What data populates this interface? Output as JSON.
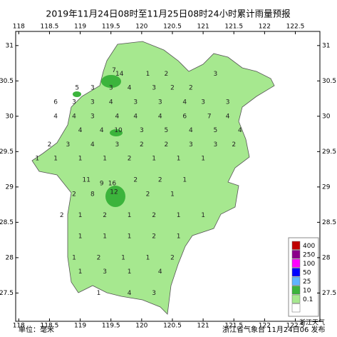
{
  "chart_data": {
    "type": "map",
    "title": "2019年11月24日08时至11月25日08时24小时累计雨量预报",
    "unit_label": "单位：毫米",
    "issuer_label": "浙江省气象台 11月24日06 发布",
    "watermark": "浙江天气",
    "xlim": [
      117.95,
      122.9
    ],
    "ylim": [
      27.1,
      31.2
    ],
    "xticks": [
      118,
      118.5,
      119,
      119.5,
      120,
      120.5,
      121,
      121.5,
      122,
      122.5
    ],
    "yticks": [
      27.5,
      28,
      28.5,
      29,
      29.5,
      30,
      30.5,
      31
    ],
    "legend": {
      "levels": [
        400,
        250,
        100,
        50,
        25,
        10,
        0.1
      ],
      "colors": [
        "#c00000",
        "#8b008b",
        "#ff00ff",
        "#0000ff",
        "#5fb4ff",
        "#3cb43c",
        "#a6e88f"
      ]
    },
    "stations": [
      {
        "lon": 119.55,
        "lat": 30.65,
        "value": 7
      },
      {
        "lon": 119.64,
        "lat": 30.6,
        "value": 14
      },
      {
        "lon": 120.1,
        "lat": 30.6,
        "value": 1
      },
      {
        "lon": 120.4,
        "lat": 30.6,
        "value": 2
      },
      {
        "lon": 121.2,
        "lat": 30.6,
        "value": 3
      },
      {
        "lon": 118.95,
        "lat": 30.4,
        "value": 5
      },
      {
        "lon": 119.2,
        "lat": 30.4,
        "value": 3
      },
      {
        "lon": 119.5,
        "lat": 30.4,
        "value": 3
      },
      {
        "lon": 119.8,
        "lat": 30.4,
        "value": 4
      },
      {
        "lon": 120.2,
        "lat": 30.4,
        "value": 3
      },
      {
        "lon": 120.5,
        "lat": 30.4,
        "value": 2
      },
      {
        "lon": 120.8,
        "lat": 30.4,
        "value": 2
      },
      {
        "lon": 118.6,
        "lat": 30.2,
        "value": 6
      },
      {
        "lon": 118.9,
        "lat": 30.2,
        "value": 3
      },
      {
        "lon": 119.2,
        "lat": 30.2,
        "value": 3
      },
      {
        "lon": 119.5,
        "lat": 30.2,
        "value": 4
      },
      {
        "lon": 119.9,
        "lat": 30.2,
        "value": 3
      },
      {
        "lon": 120.3,
        "lat": 30.2,
        "value": 3
      },
      {
        "lon": 120.7,
        "lat": 30.2,
        "value": 4
      },
      {
        "lon": 121.0,
        "lat": 30.2,
        "value": 3
      },
      {
        "lon": 121.4,
        "lat": 30.2,
        "value": 3
      },
      {
        "lon": 118.6,
        "lat": 30.0,
        "value": 4
      },
      {
        "lon": 118.9,
        "lat": 30.0,
        "value": 4
      },
      {
        "lon": 119.2,
        "lat": 30.0,
        "value": 3
      },
      {
        "lon": 119.6,
        "lat": 30.0,
        "value": 4
      },
      {
        "lon": 119.9,
        "lat": 30.0,
        "value": 4
      },
      {
        "lon": 120.3,
        "lat": 30.0,
        "value": 4
      },
      {
        "lon": 120.7,
        "lat": 30.0,
        "value": 6
      },
      {
        "lon": 121.1,
        "lat": 30.0,
        "value": 7
      },
      {
        "lon": 121.4,
        "lat": 30.0,
        "value": 4
      },
      {
        "lon": 119.0,
        "lat": 29.8,
        "value": 4
      },
      {
        "lon": 119.35,
        "lat": 29.8,
        "value": 4
      },
      {
        "lon": 119.62,
        "lat": 29.8,
        "value": 10
      },
      {
        "lon": 120.0,
        "lat": 29.8,
        "value": 3
      },
      {
        "lon": 120.4,
        "lat": 29.8,
        "value": 5
      },
      {
        "lon": 120.8,
        "lat": 29.8,
        "value": 4
      },
      {
        "lon": 121.2,
        "lat": 29.8,
        "value": 5
      },
      {
        "lon": 121.6,
        "lat": 29.8,
        "value": 4
      },
      {
        "lon": 118.5,
        "lat": 29.6,
        "value": 2
      },
      {
        "lon": 118.8,
        "lat": 29.6,
        "value": 3
      },
      {
        "lon": 119.2,
        "lat": 29.6,
        "value": 4
      },
      {
        "lon": 119.6,
        "lat": 29.6,
        "value": 3
      },
      {
        "lon": 120.0,
        "lat": 29.6,
        "value": 2
      },
      {
        "lon": 120.4,
        "lat": 29.6,
        "value": 2
      },
      {
        "lon": 120.8,
        "lat": 29.6,
        "value": 3
      },
      {
        "lon": 121.2,
        "lat": 29.6,
        "value": 3
      },
      {
        "lon": 121.5,
        "lat": 29.6,
        "value": 2
      },
      {
        "lon": 118.3,
        "lat": 29.4,
        "value": 1
      },
      {
        "lon": 118.6,
        "lat": 29.4,
        "value": 1
      },
      {
        "lon": 119.0,
        "lat": 29.4,
        "value": 1
      },
      {
        "lon": 119.4,
        "lat": 29.4,
        "value": 1
      },
      {
        "lon": 119.8,
        "lat": 29.4,
        "value": 2
      },
      {
        "lon": 120.2,
        "lat": 29.4,
        "value": 1
      },
      {
        "lon": 120.6,
        "lat": 29.4,
        "value": 1
      },
      {
        "lon": 121.0,
        "lat": 29.4,
        "value": 1
      },
      {
        "lon": 119.1,
        "lat": 29.1,
        "value": 11
      },
      {
        "lon": 119.35,
        "lat": 29.05,
        "value": 9
      },
      {
        "lon": 119.52,
        "lat": 29.05,
        "value": 16
      },
      {
        "lon": 119.9,
        "lat": 29.1,
        "value": 2
      },
      {
        "lon": 120.3,
        "lat": 29.1,
        "value": 2
      },
      {
        "lon": 120.7,
        "lat": 29.1,
        "value": 1
      },
      {
        "lon": 118.9,
        "lat": 28.9,
        "value": 2
      },
      {
        "lon": 119.2,
        "lat": 28.9,
        "value": 8
      },
      {
        "lon": 119.55,
        "lat": 28.93,
        "value": 12
      },
      {
        "lon": 120.1,
        "lat": 28.9,
        "value": 2
      },
      {
        "lon": 120.5,
        "lat": 28.9,
        "value": 1
      },
      {
        "lon": 118.7,
        "lat": 28.6,
        "value": 2
      },
      {
        "lon": 119.0,
        "lat": 28.6,
        "value": 1
      },
      {
        "lon": 119.4,
        "lat": 28.6,
        "value": 2
      },
      {
        "lon": 119.8,
        "lat": 28.6,
        "value": 1
      },
      {
        "lon": 120.2,
        "lat": 28.6,
        "value": 2
      },
      {
        "lon": 120.6,
        "lat": 28.6,
        "value": 1
      },
      {
        "lon": 121.0,
        "lat": 28.6,
        "value": 1
      },
      {
        "lon": 119.0,
        "lat": 28.3,
        "value": 1
      },
      {
        "lon": 119.4,
        "lat": 28.3,
        "value": 1
      },
      {
        "lon": 119.8,
        "lat": 28.3,
        "value": 1
      },
      {
        "lon": 120.2,
        "lat": 28.3,
        "value": 2
      },
      {
        "lon": 120.6,
        "lat": 28.3,
        "value": 1
      },
      {
        "lon": 118.9,
        "lat": 28.0,
        "value": 1
      },
      {
        "lon": 119.3,
        "lat": 28.0,
        "value": 2
      },
      {
        "lon": 119.7,
        "lat": 28.0,
        "value": 1
      },
      {
        "lon": 120.1,
        "lat": 28.0,
        "value": 1
      },
      {
        "lon": 120.5,
        "lat": 28.0,
        "value": 2
      },
      {
        "lon": 119.0,
        "lat": 27.8,
        "value": 1
      },
      {
        "lon": 119.4,
        "lat": 27.8,
        "value": 3
      },
      {
        "lon": 119.8,
        "lat": 27.8,
        "value": 1
      },
      {
        "lon": 120.3,
        "lat": 27.8,
        "value": 4
      },
      {
        "lon": 119.3,
        "lat": 27.5,
        "value": 1
      },
      {
        "lon": 119.8,
        "lat": 27.5,
        "value": 4
      },
      {
        "lon": 120.2,
        "lat": 27.5,
        "value": 3
      }
    ]
  }
}
